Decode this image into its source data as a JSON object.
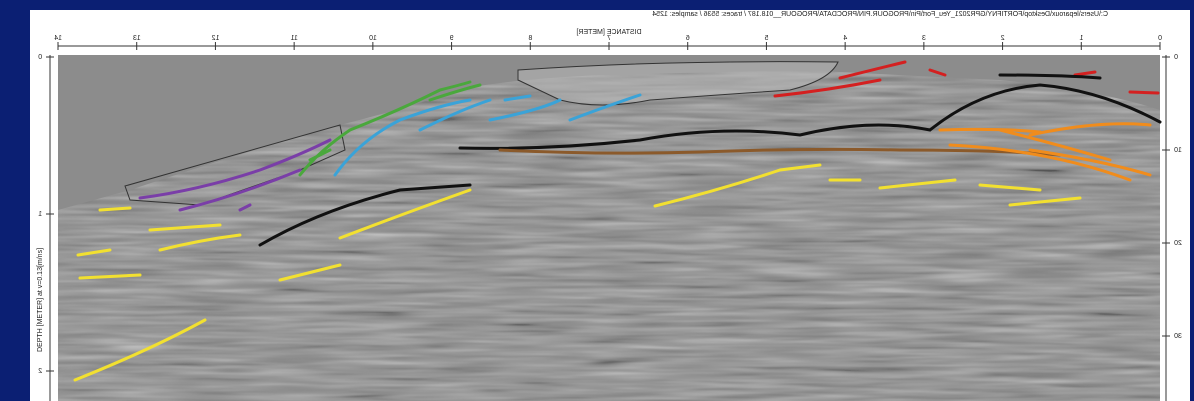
{
  "header": {
    "path": "C:\\Users\\leparoux\\Desktop\\FORTIFNY\\GPR2021_Yeu_Fort\\Pin\\PROGOUR.PIN\\PROCDATA\\PROGOUR__018.187 / traces: 5536 / samples: 1254"
  },
  "x_axis": {
    "label": "DISTANCE [METER]",
    "ticks": [
      "0",
      "1",
      "2",
      "3",
      "4",
      "5",
      "6",
      "7",
      "8",
      "9",
      "10",
      "11",
      "12",
      "13",
      "14"
    ]
  },
  "y_axis": {
    "label": "DEPTH [METER] at v=0.13[m/ns]",
    "ticks": [
      "0",
      "1",
      "2"
    ]
  },
  "y2_axis": {
    "ticks": [
      "0",
      "10",
      "20",
      "30"
    ]
  }
}
